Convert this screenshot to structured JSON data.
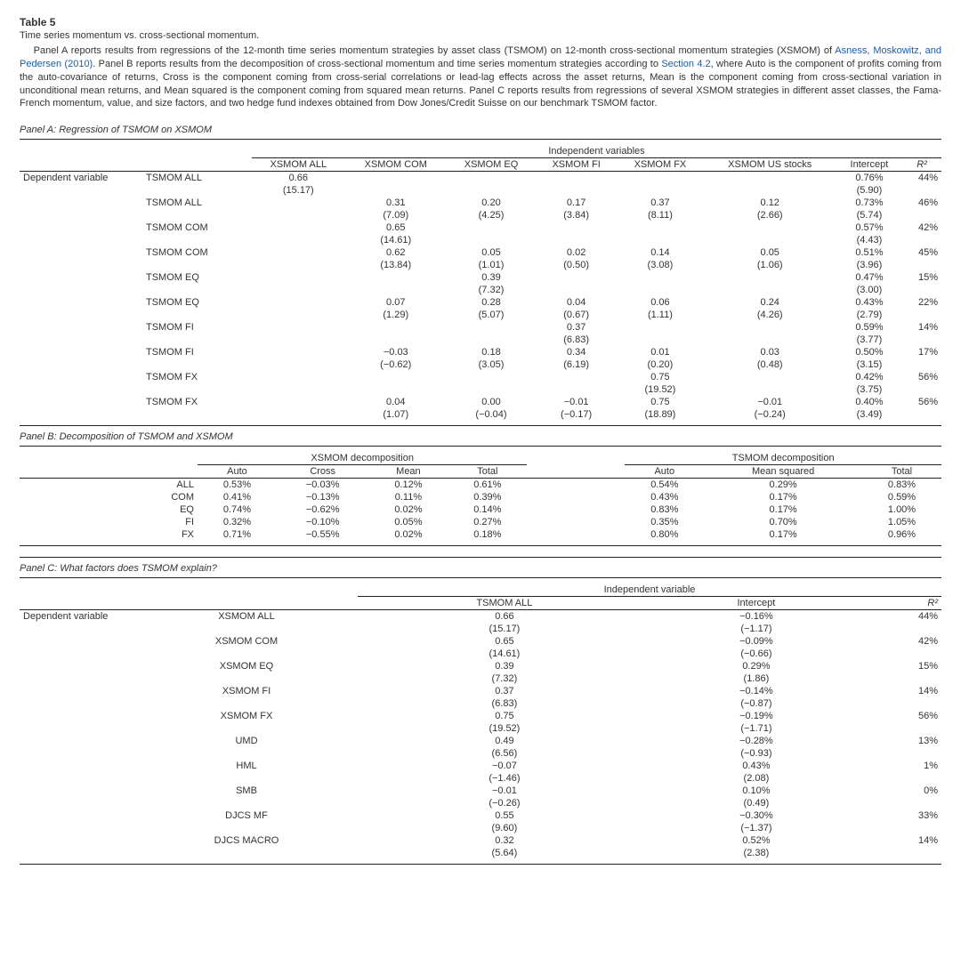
{
  "table_number": "Table 5",
  "table_title": "Time series momentum vs. cross-sectional momentum.",
  "caption_parts": {
    "p1": "Panel A reports results from regressions of the 12-month time series momentum strategies by asset class (TSMOM) on 12-month cross-sectional momentum strategies (XSMOM) of ",
    "link1": "Asness, Moskowitz, and Pedersen (2010)",
    "p2": ". Panel B reports results from the decomposition of cross-sectional momentum and time series momentum strategies according to ",
    "link2": "Section 4.2",
    "p3": ", where Auto is the component of profits coming from the auto-covariance of returns, Cross is the component coming from cross-serial correlations or lead-lag effects across the asset returns, Mean is the component coming from cross-sectional variation in unconditional mean returns, and Mean squared is the component coming from squared mean returns. Panel C reports results from regressions of several XSMOM strategies in different asset classes, the Fama-French momentum, value, and size factors, and two hedge fund indexes obtained from Dow Jones/Credit Suisse on our benchmark TSMOM factor."
  },
  "panelA": {
    "header": "Panel A: Regression of TSMOM on XSMOM",
    "indep_label": "Independent variables",
    "dep_label": "Dependent variable",
    "cols": [
      "XSMOM ALL",
      "XSMOM COM",
      "XSMOM EQ",
      "XSMOM FI",
      "XSMOM FX",
      "XSMOM US stocks",
      "Intercept",
      "R²"
    ],
    "rows": [
      {
        "dep": "TSMOM ALL",
        "v": [
          "0.66",
          "",
          "",
          "",
          "",
          "",
          "0.76%",
          "44%"
        ],
        "t": [
          "(15.17)",
          "",
          "",
          "",
          "",
          "",
          "(5.90)",
          ""
        ]
      },
      {
        "dep": "TSMOM ALL",
        "v": [
          "",
          "0.31",
          "0.20",
          "0.17",
          "0.37",
          "0.12",
          "0.73%",
          "46%"
        ],
        "t": [
          "",
          "(7.09)",
          "(4.25)",
          "(3.84)",
          "(8.11)",
          "(2.66)",
          "(5.74)",
          ""
        ]
      },
      {
        "dep": "TSMOM COM",
        "v": [
          "",
          "0.65",
          "",
          "",
          "",
          "",
          "0.57%",
          "42%"
        ],
        "t": [
          "",
          "(14.61)",
          "",
          "",
          "",
          "",
          "(4.43)",
          ""
        ]
      },
      {
        "dep": "TSMOM COM",
        "v": [
          "",
          "0.62",
          "0.05",
          "0.02",
          "0.14",
          "0.05",
          "0.51%",
          "45%"
        ],
        "t": [
          "",
          "(13.84)",
          "(1.01)",
          "(0.50)",
          "(3.08)",
          "(1.06)",
          "(3.96)",
          ""
        ]
      },
      {
        "dep": "TSMOM EQ",
        "v": [
          "",
          "",
          "0.39",
          "",
          "",
          "",
          "0.47%",
          "15%"
        ],
        "t": [
          "",
          "",
          "(7.32)",
          "",
          "",
          "",
          "(3.00)",
          ""
        ]
      },
      {
        "dep": "TSMOM EQ",
        "v": [
          "",
          "0.07",
          "0.28",
          "0.04",
          "0.06",
          "0.24",
          "0.43%",
          "22%"
        ],
        "t": [
          "",
          "(1.29)",
          "(5.07)",
          "(0.67)",
          "(1.11)",
          "(4.26)",
          "(2.79)",
          ""
        ]
      },
      {
        "dep": "TSMOM FI",
        "v": [
          "",
          "",
          "",
          "0.37",
          "",
          "",
          "0.59%",
          "14%"
        ],
        "t": [
          "",
          "",
          "",
          "(6.83)",
          "",
          "",
          "(3.77)",
          ""
        ]
      },
      {
        "dep": "TSMOM FI",
        "v": [
          "",
          "−0.03",
          "0.18",
          "0.34",
          "0.01",
          "0.03",
          "0.50%",
          "17%"
        ],
        "t": [
          "",
          "(−0.62)",
          "(3.05)",
          "(6.19)",
          "(0.20)",
          "(0.48)",
          "(3.15)",
          ""
        ]
      },
      {
        "dep": "TSMOM FX",
        "v": [
          "",
          "",
          "",
          "",
          "0.75",
          "",
          "0.42%",
          "56%"
        ],
        "t": [
          "",
          "",
          "",
          "",
          "(19.52)",
          "",
          "(3.75)",
          ""
        ]
      },
      {
        "dep": "TSMOM FX",
        "v": [
          "",
          "0.04",
          "0.00",
          "−0.01",
          "0.75",
          "−0.01",
          "0.40%",
          "56%"
        ],
        "t": [
          "",
          "(1.07)",
          "(−0.04)",
          "(−0.17)",
          "(18.89)",
          "(−0.24)",
          "(3.49)",
          ""
        ]
      }
    ]
  },
  "panelB": {
    "header": "Panel B: Decomposition of TSMOM and XSMOM",
    "groups": {
      "x": "XSMOM decomposition",
      "t": "TSMOM decomposition"
    },
    "cols_x": [
      "Auto",
      "Cross",
      "Mean",
      "Total"
    ],
    "cols_t": [
      "Auto",
      "Mean squared",
      "Total"
    ],
    "rows": [
      {
        "lbl": "ALL",
        "x": [
          "0.53%",
          "−0.03%",
          "0.12%",
          "0.61%"
        ],
        "t": [
          "0.54%",
          "0.29%",
          "0.83%"
        ]
      },
      {
        "lbl": "COM",
        "x": [
          "0.41%",
          "−0.13%",
          "0.11%",
          "0.39%"
        ],
        "t": [
          "0.43%",
          "0.17%",
          "0.59%"
        ]
      },
      {
        "lbl": "EQ",
        "x": [
          "0.74%",
          "−0.62%",
          "0.02%",
          "0.14%"
        ],
        "t": [
          "0.83%",
          "0.17%",
          "1.00%"
        ]
      },
      {
        "lbl": "FI",
        "x": [
          "0.32%",
          "−0.10%",
          "0.05%",
          "0.27%"
        ],
        "t": [
          "0.35%",
          "0.70%",
          "1.05%"
        ]
      },
      {
        "lbl": "FX",
        "x": [
          "0.71%",
          "−0.55%",
          "0.02%",
          "0.18%"
        ],
        "t": [
          "0.80%",
          "0.17%",
          "0.96%"
        ]
      }
    ]
  },
  "panelC": {
    "header": "Panel C: What factors does TSMOM explain?",
    "indep_label": "Independent variable",
    "dep_label": "Dependent variable",
    "cols": [
      "TSMOM ALL",
      "Intercept",
      "R²"
    ],
    "rows": [
      {
        "dep": "XSMOM ALL",
        "v": [
          "0.66",
          "−0.16%",
          "44%"
        ],
        "t": [
          "(15.17)",
          "(−1.17)",
          ""
        ]
      },
      {
        "dep": "XSMOM COM",
        "v": [
          "0.65",
          "−0.09%",
          "42%"
        ],
        "t": [
          "(14.61)",
          "(−0.66)",
          ""
        ]
      },
      {
        "dep": "XSMOM EQ",
        "v": [
          "0.39",
          "0.29%",
          "15%"
        ],
        "t": [
          "(7.32)",
          "(1.86)",
          ""
        ]
      },
      {
        "dep": "XSMOM FI",
        "v": [
          "0.37",
          "−0.14%",
          "14%"
        ],
        "t": [
          "(6.83)",
          "(−0.87)",
          ""
        ]
      },
      {
        "dep": "XSMOM FX",
        "v": [
          "0.75",
          "−0.19%",
          "56%"
        ],
        "t": [
          "(19.52)",
          "(−1.71)",
          ""
        ]
      },
      {
        "dep": "UMD",
        "v": [
          "0.49",
          "−0.28%",
          "13%"
        ],
        "t": [
          "(6.56)",
          "(−0.93)",
          ""
        ]
      },
      {
        "dep": "HML",
        "v": [
          "−0.07",
          "0.43%",
          "1%"
        ],
        "t": [
          "(−1.46)",
          "(2.08)",
          ""
        ]
      },
      {
        "dep": "SMB",
        "v": [
          "−0.01",
          "0.10%",
          "0%"
        ],
        "t": [
          "(−0.26)",
          "(0.49)",
          ""
        ]
      },
      {
        "dep": "DJCS MF",
        "v": [
          "0.55",
          "−0.30%",
          "33%"
        ],
        "t": [
          "(9.60)",
          "(−1.37)",
          ""
        ]
      },
      {
        "dep": "DJCS MACRO",
        "v": [
          "0.32",
          "0.52%",
          "14%"
        ],
        "t": [
          "(5.64)",
          "(2.38)",
          ""
        ]
      }
    ]
  }
}
